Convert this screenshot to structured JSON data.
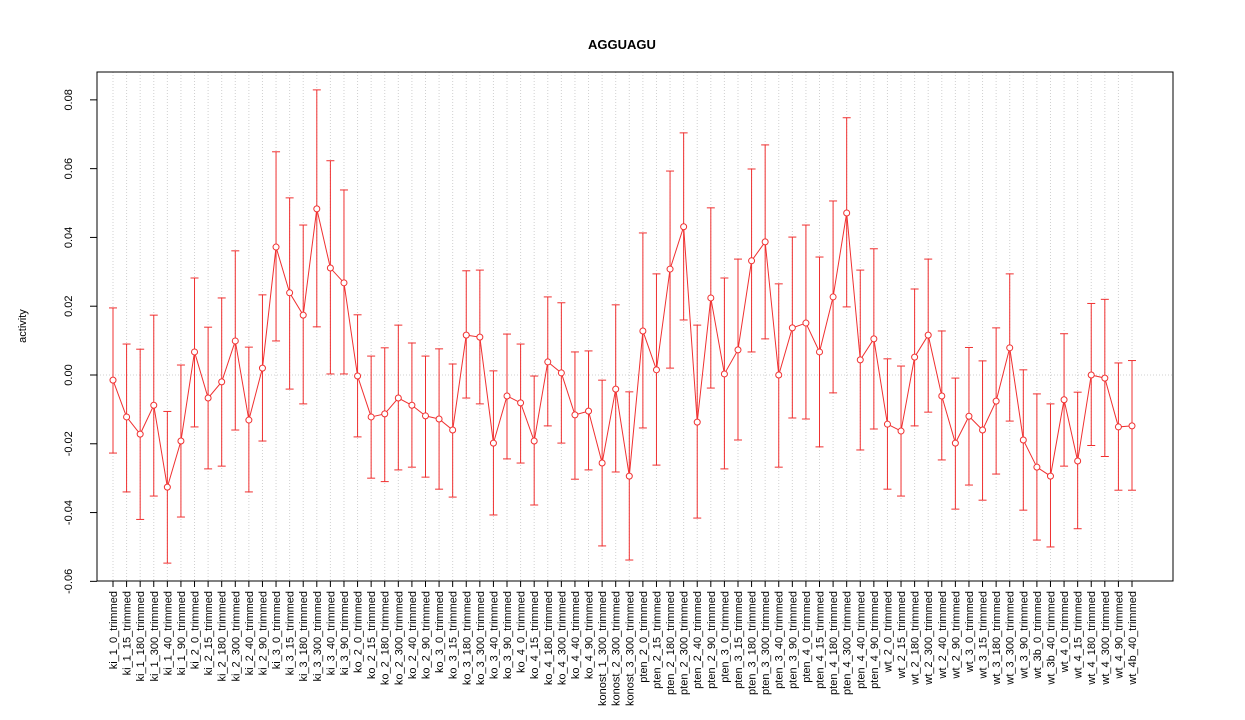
{
  "chart_data": {
    "type": "errorbar",
    "title": "AGGUAGU",
    "y_label": "activity",
    "categories": [
      "ki_1_0_trimmed",
      "ki_1_15_trimmed",
      "ki_1_180_trimmed",
      "ki_1_300_trimmed",
      "ki_1_40_trimmed",
      "ki_1_90_trimmed",
      "ki_2_0_trimmed",
      "ki_2_15_trimmed",
      "ki_2_180_trimmed",
      "ki_2_300_trimmed",
      "ki_2_40_trimmed",
      "ki_2_90_trimmed",
      "ki_3_0_trimmed",
      "ki_3_15_trimmed",
      "ki_3_180_trimmed",
      "ki_3_300_trimmed",
      "ki_3_40_trimmed",
      "ki_3_90_trimmed",
      "ko_2_0_trimmed",
      "ko_2_15_trimmed",
      "ko_2_180_trimmed",
      "ko_2_300_trimmed",
      "ko_2_40_trimmed",
      "ko_2_90_trimmed",
      "ko_3_0_trimmed",
      "ko_3_15_trimmed",
      "ko_3_180_trimmed",
      "ko_3_300_trimmed",
      "ko_3_40_trimmed",
      "ko_3_90_trimmed",
      "ko_4_0_trimmed",
      "ko_4_15_trimmed",
      "ko_4_180_trimmed",
      "ko_4_300_trimmed",
      "ko_4_40_trimmed",
      "ko_4_90_trimmed",
      "konost_1_300_trimmed",
      "konost_2_300_trimmed",
      "konost_3_300_trimmed",
      "pten_2_0_trimmed",
      "pten_2_15_trimmed",
      "pten_2_180_trimmed",
      "pten_2_300_trimmed",
      "pten_2_40_trimmed",
      "pten_2_90_trimmed",
      "pten_3_0_trimmed",
      "pten_3_15_trimmed",
      "pten_3_180_trimmed",
      "pten_3_300_trimmed",
      "pten_3_40_trimmed",
      "pten_3_90_trimmed",
      "pten_4_0_trimmed",
      "pten_4_15_trimmed",
      "pten_4_180_trimmed",
      "pten_4_300_trimmed",
      "pten_4_40_trimmed",
      "pten_4_90_trimmed",
      "wt_2_0_trimmed",
      "wt_2_15_trimmed",
      "wt_2_180_trimmed",
      "wt_2_300_trimmed",
      "wt_2_40_trimmed",
      "wt_2_90_trimmed",
      "wt_3_0_trimmed",
      "wt_3_15_trimmed",
      "wt_3_180_trimmed",
      "wt_3_300_trimmed",
      "wt_3_90_trimmed",
      "wt_3b_0_trimmed",
      "wt_3b_40_trimmed",
      "wt_4_0_trimmed",
      "wt_4_15_trimmed",
      "wt_4_180_trimmed",
      "wt_4_300_trimmed",
      "wt_4_90_trimmed",
      "wt_4b_40_trimmed"
    ],
    "color": "#f03030",
    "values": [
      -0.0015,
      -0.0122,
      -0.0172,
      -0.0088,
      -0.0326,
      -0.0192,
      0.0067,
      -0.0067,
      -0.002,
      0.0099,
      -0.0131,
      0.002,
      0.0372,
      0.0239,
      0.0174,
      0.0483,
      0.0311,
      0.0268,
      -0.0003,
      -0.0122,
      -0.0113,
      -0.0067,
      -0.0088,
      -0.0119,
      -0.0128,
      -0.016,
      0.0116,
      0.011,
      -0.0198,
      -0.0061,
      -0.0081,
      -0.0192,
      0.0038,
      0.0006,
      -0.0116,
      -0.0105,
      -0.0256,
      -0.0041,
      -0.0294,
      0.0128,
      0.0015,
      0.0308,
      0.0431,
      -0.0137,
      0.0224,
      0.0003,
      0.0073,
      0.0332,
      0.0387,
      0.0,
      0.0137,
      0.0151,
      0.0067,
      0.0227,
      0.0471,
      0.0044,
      0.0105,
      -0.0143,
      -0.0163,
      0.0052,
      0.0116,
      -0.0061,
      -0.0198,
      -0.012,
      -0.016,
      -0.0076,
      0.0079,
      -0.0189,
      -0.0268,
      -0.0294,
      -0.0072,
      -0.025,
      0.0,
      -0.0009,
      -0.0151,
      -0.0148
    ],
    "upper": [
      0.0195,
      0.009,
      0.0075,
      0.0174,
      -0.0106,
      0.0029,
      0.0282,
      0.0139,
      0.0224,
      0.0361,
      0.0081,
      0.0233,
      0.0649,
      0.0515,
      0.0436,
      0.0829,
      0.0623,
      0.0538,
      0.0175,
      0.0055,
      0.0079,
      0.0145,
      0.0093,
      0.0055,
      0.0076,
      0.0032,
      0.0303,
      0.0305,
      0.0012,
      0.0119,
      0.009,
      -0.0003,
      0.0227,
      0.021,
      0.0067,
      0.007,
      -0.0015,
      0.0204,
      -0.0049,
      0.0413,
      0.0294,
      0.0593,
      0.0704,
      0.0145,
      0.0486,
      0.0282,
      0.0337,
      0.0599,
      0.0669,
      0.0265,
      0.0401,
      0.0436,
      0.0343,
      0.0506,
      0.0748,
      0.0305,
      0.0367,
      0.0047,
      0.0026,
      0.025,
      0.0337,
      0.0128,
      -0.0009,
      0.008,
      0.0041,
      0.0137,
      0.0294,
      0.0015,
      -0.0055,
      -0.0084,
      0.012,
      -0.005,
      0.0208,
      0.022,
      0.0035,
      0.0042
    ],
    "lower": [
      -0.0227,
      -0.034,
      -0.042,
      -0.0352,
      -0.0547,
      -0.0413,
      -0.0151,
      -0.0273,
      -0.0265,
      -0.016,
      -0.034,
      -0.0192,
      0.0099,
      -0.0041,
      -0.0084,
      0.014,
      0.0003,
      0.0003,
      -0.018,
      -0.03,
      -0.031,
      -0.0276,
      -0.0268,
      -0.0297,
      -0.0332,
      -0.0355,
      -0.0067,
      -0.0084,
      -0.0407,
      -0.0244,
      -0.0256,
      -0.0378,
      -0.0148,
      -0.0198,
      -0.0303,
      -0.0276,
      -0.0497,
      -0.0282,
      -0.0538,
      -0.0154,
      -0.0262,
      0.002,
      0.016,
      -0.0416,
      -0.0038,
      -0.0273,
      -0.0189,
      0.0067,
      0.0105,
      -0.0268,
      -0.0125,
      -0.0128,
      -0.0209,
      -0.0052,
      0.0198,
      -0.0218,
      -0.0157,
      -0.0332,
      -0.0352,
      -0.0148,
      -0.0108,
      -0.0247,
      -0.039,
      -0.032,
      -0.0364,
      -0.0288,
      -0.0134,
      -0.0393,
      -0.048,
      -0.05,
      -0.0265,
      -0.0447,
      -0.0205,
      -0.0237,
      -0.0335,
      -0.0335
    ],
    "ylim": [
      -0.0599,
      0.0881
    ],
    "yticks": [
      -0.06,
      -0.04,
      -0.02,
      {
        "value": 0,
        "label": "0.00"
      },
      0.02,
      0.04,
      0.06,
      0.08
    ],
    "grid": true
  }
}
